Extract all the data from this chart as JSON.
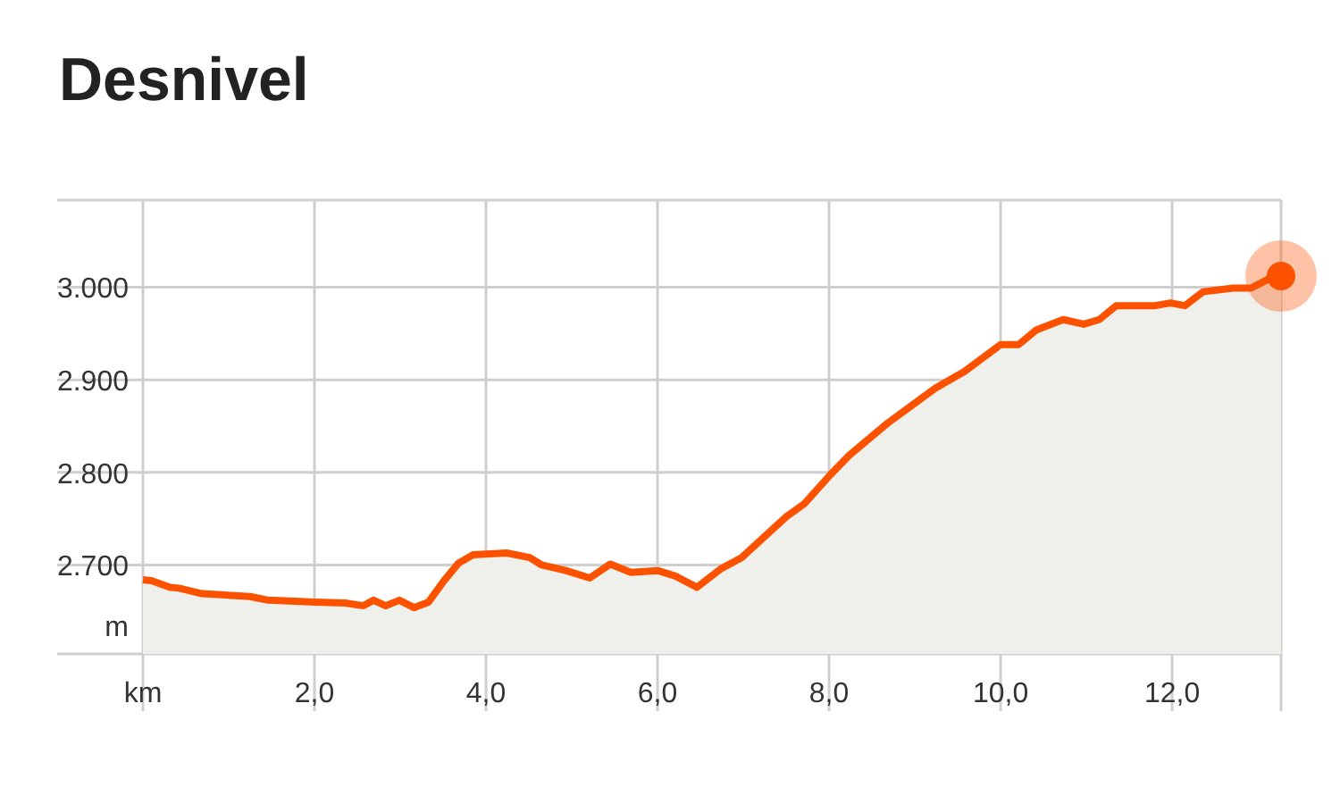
{
  "chart_data": {
    "type": "area",
    "title": "Desnivel",
    "ylabel": "m",
    "x": [
      0,
      0.1,
      0.31,
      0.42,
      0.69,
      1.25,
      1.46,
      2.01,
      2.36,
      2.57,
      2.69,
      2.83,
      2.99,
      3.16,
      3.33,
      3.51,
      3.68,
      3.85,
      4.24,
      4.51,
      4.65,
      4.93,
      5.21,
      5.45,
      5.69,
      6.0,
      6.21,
      6.46,
      6.74,
      6.98,
      7.5,
      7.71,
      8.02,
      8.23,
      8.68,
      9.24,
      9.58,
      10.0,
      10.21,
      10.42,
      10.73,
      10.97,
      11.15,
      11.35,
      11.8,
      11.98,
      12.15,
      12.36,
      12.71,
      12.92,
      13.13,
      13.27
    ],
    "series": [
      {
        "color": "#fc5200",
        "values": [
          2684,
          2683,
          2676,
          2675,
          2669,
          2666,
          2662,
          2660,
          2659,
          2656,
          2662,
          2656,
          2662,
          2654,
          2660,
          2683,
          2702,
          2711,
          2713,
          2708,
          2700,
          2694,
          2686,
          2701,
          2692,
          2694,
          2688,
          2676,
          2696,
          2708,
          2752,
          2766,
          2798,
          2818,
          2853,
          2891,
          2909,
          2938,
          2938,
          2954,
          2965,
          2960,
          2965,
          2980,
          2980,
          2983,
          2980,
          2995,
          2999,
          2999,
          3009,
          3012
        ]
      },
      {
        "type": "scatter",
        "marker": "circle",
        "color": "#fc5200",
        "x": [
          13.27
        ],
        "values": [
          3012
        ]
      }
    ],
    "xlim": [
      0,
      13.27
    ],
    "xticks": [
      {
        "value": 0,
        "label": "km"
      },
      {
        "value": 2,
        "label": "2,0"
      },
      {
        "value": 4,
        "label": "4,0"
      },
      {
        "value": 6,
        "label": "6,0"
      },
      {
        "value": 8,
        "label": "8,0"
      },
      {
        "value": 10,
        "label": "10,0"
      },
      {
        "value": 12,
        "label": "12,0"
      },
      {
        "value": 13.27,
        "label": null
      }
    ],
    "ylim": [
      2604,
      3094
    ],
    "yticks": [
      {
        "value": 2604,
        "label": null
      },
      {
        "value": 2700,
        "label": "2.700"
      },
      {
        "value": 2800,
        "label": "2.800"
      },
      {
        "value": 2900,
        "label": "2.900"
      },
      {
        "value": 3000,
        "label": "3.000"
      },
      {
        "value": 3094,
        "label": null
      }
    ],
    "grid": true,
    "marker": "none",
    "legend": false
  }
}
